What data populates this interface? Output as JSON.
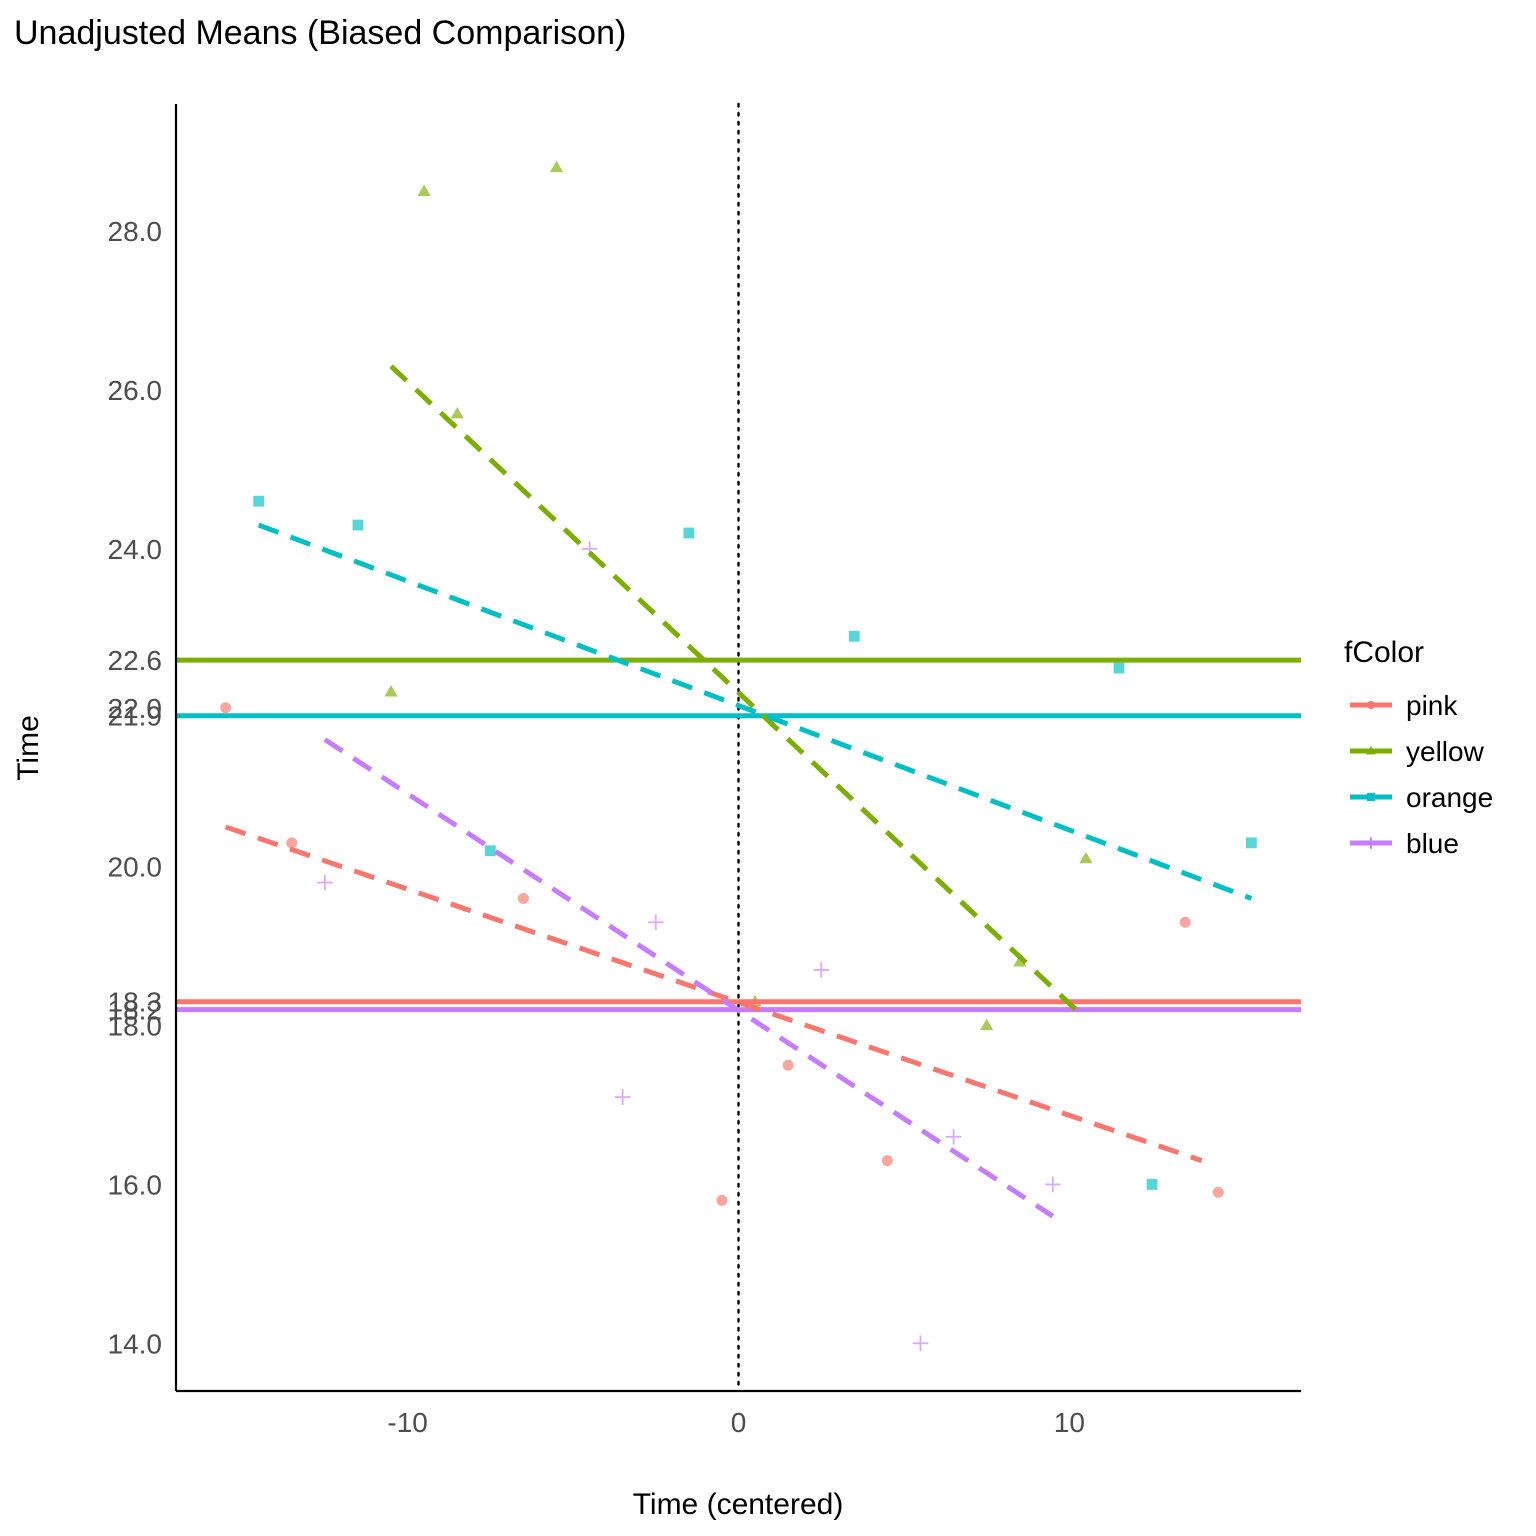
{
  "chart_data": {
    "type": "scatter",
    "title": "Unadjusted Means (Biased Comparison)",
    "xlabel": "Time (centered)",
    "ylabel": "Time",
    "xlim": [
      -17,
      17
    ],
    "ylim": [
      13.4,
      29.6
    ],
    "x_ticks": [
      -10,
      0,
      10
    ],
    "y_ticks": [
      14.0,
      16.0,
      18.0,
      18.2,
      18.3,
      20.0,
      21.9,
      22.0,
      22.6,
      24.0,
      26.0,
      28.0
    ],
    "x_tick_labels": [
      "-10",
      "0",
      "10"
    ],
    "y_tick_labels": [
      "14.0",
      "16.0",
      "18.0",
      "18.2",
      "18.3",
      "20.0",
      "21.9",
      "22.0",
      "22.6",
      "24.0",
      "26.0",
      "28.0"
    ],
    "grid": false,
    "reference_line_x": 0,
    "legend": {
      "title": "fColor",
      "position": "right",
      "entries": [
        "pink",
        "yellow",
        "orange",
        "blue"
      ]
    },
    "series": [
      {
        "name": "pink",
        "color": "#F8766D",
        "marker": "circle",
        "mean": 18.3,
        "trend": {
          "x": [
            -15.5,
            14.0
          ],
          "y": [
            20.5,
            16.3
          ]
        },
        "points": [
          {
            "x": -15.5,
            "y": 22.0
          },
          {
            "x": -13.5,
            "y": 20.3
          },
          {
            "x": -6.5,
            "y": 19.6
          },
          {
            "x": -0.5,
            "y": 15.8
          },
          {
            "x": 1.5,
            "y": 17.5
          },
          {
            "x": 4.5,
            "y": 16.3
          },
          {
            "x": 13.5,
            "y": 19.3
          },
          {
            "x": 14.5,
            "y": 15.9
          }
        ]
      },
      {
        "name": "yellow",
        "color": "#7CAE00",
        "marker": "triangle",
        "mean": 22.6,
        "trend": {
          "x": [
            -10.5,
            10.2
          ],
          "y": [
            26.3,
            18.2
          ]
        },
        "points": [
          {
            "x": -10.5,
            "y": 22.2
          },
          {
            "x": -9.5,
            "y": 28.5
          },
          {
            "x": -8.5,
            "y": 25.7
          },
          {
            "x": -5.5,
            "y": 28.8
          },
          {
            "x": 0.5,
            "y": 18.3
          },
          {
            "x": 7.5,
            "y": 18.0
          },
          {
            "x": 8.5,
            "y": 18.8
          },
          {
            "x": 10.5,
            "y": 20.1
          }
        ]
      },
      {
        "name": "orange",
        "color": "#00BFC4",
        "marker": "square",
        "mean": 21.9,
        "trend": {
          "x": [
            -14.5,
            15.5
          ],
          "y": [
            24.3,
            19.6
          ]
        },
        "points": [
          {
            "x": -14.5,
            "y": 24.6
          },
          {
            "x": -11.5,
            "y": 24.3
          },
          {
            "x": -7.5,
            "y": 20.2
          },
          {
            "x": -1.5,
            "y": 24.2
          },
          {
            "x": 3.5,
            "y": 22.9
          },
          {
            "x": 11.5,
            "y": 22.5
          },
          {
            "x": 12.5,
            "y": 16.0
          },
          {
            "x": 15.5,
            "y": 20.3
          }
        ]
      },
      {
        "name": "blue",
        "color": "#C77CFF",
        "marker": "plus",
        "mean": 18.2,
        "trend": {
          "x": [
            -12.5,
            9.5
          ],
          "y": [
            21.6,
            15.6
          ]
        },
        "points": [
          {
            "x": -12.5,
            "y": 19.8
          },
          {
            "x": -4.5,
            "y": 24.0
          },
          {
            "x": -3.5,
            "y": 17.1
          },
          {
            "x": -2.5,
            "y": 19.3
          },
          {
            "x": 2.5,
            "y": 18.7
          },
          {
            "x": 5.5,
            "y": 14.0
          },
          {
            "x": 6.5,
            "y": 16.6
          },
          {
            "x": 9.5,
            "y": 16.0
          }
        ]
      }
    ]
  }
}
